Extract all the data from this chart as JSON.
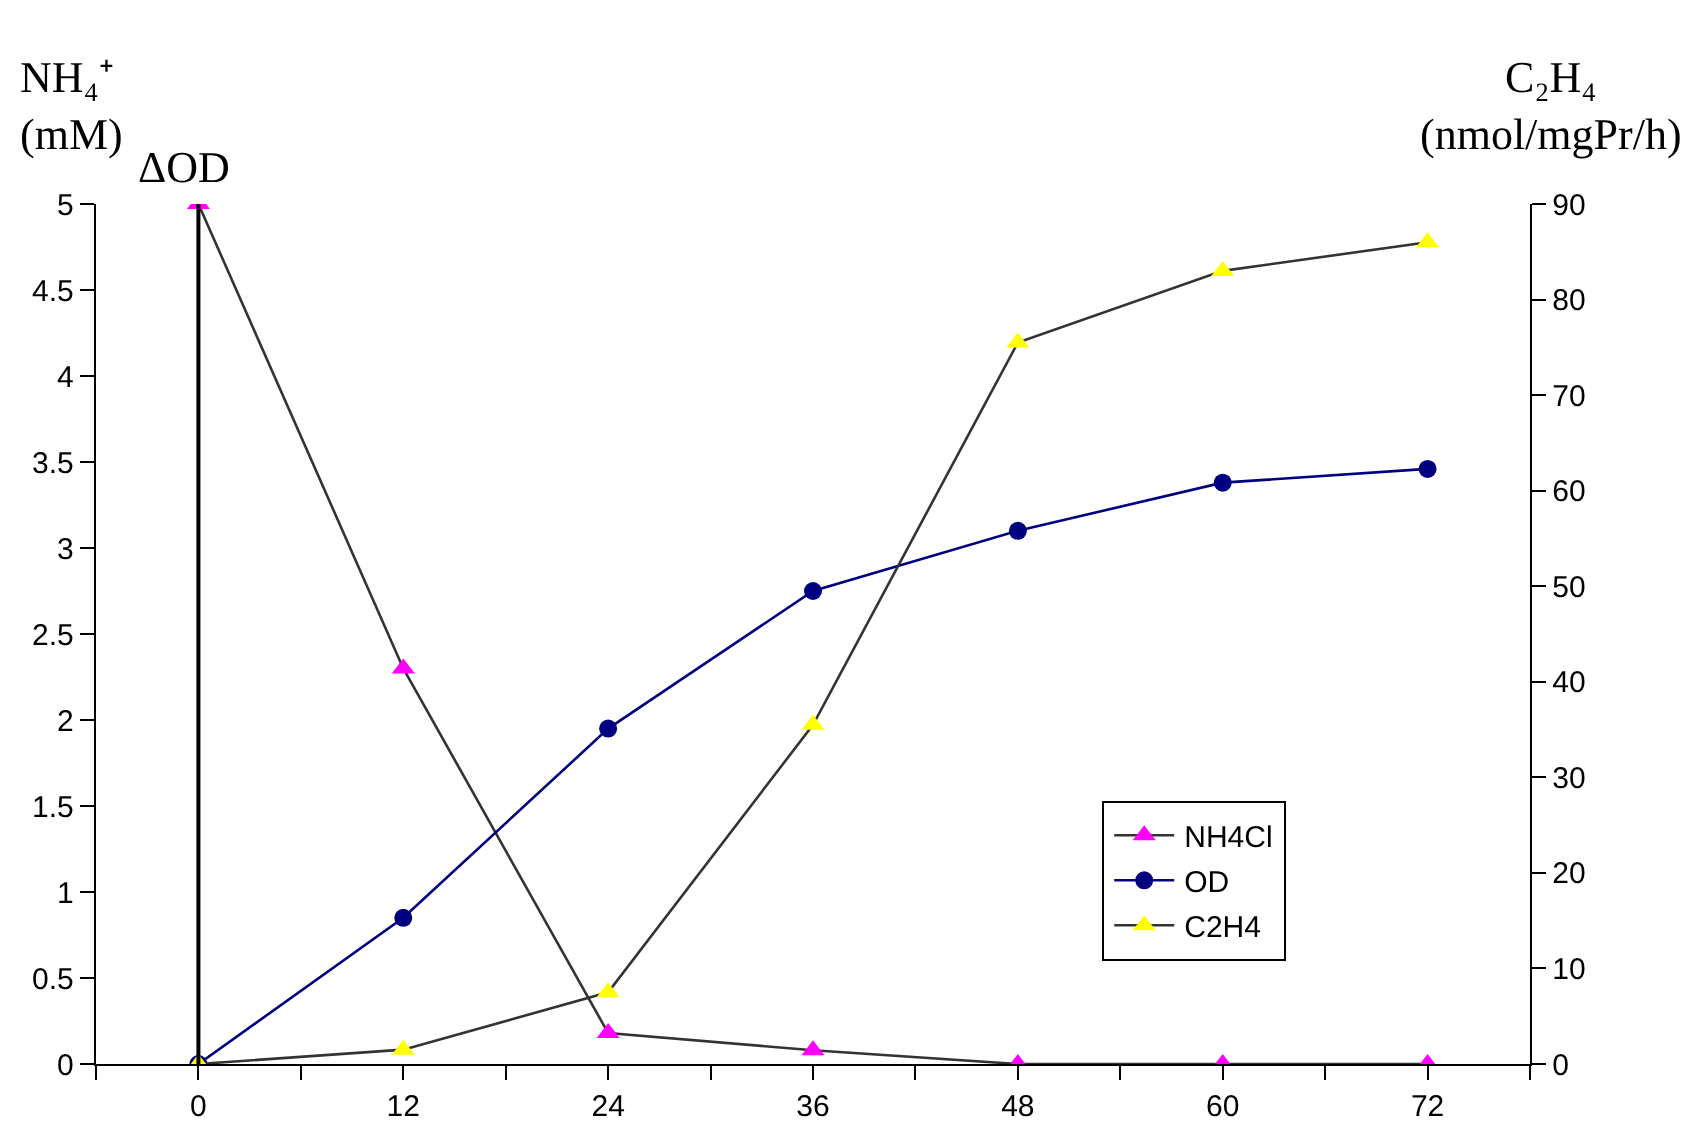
{
  "chart_data": {
    "type": "line",
    "ylabel": "NH₄⁺\n(mM)",
    "y2label": "C₂H₄\n(nmol/mgPr/h)",
    "x": [
      0,
      12,
      24,
      36,
      48,
      60,
      72
    ],
    "series": [
      {
        "name": "NH4Cl",
        "color": "#ff00ff",
        "marker": "triangle",
        "values": [
          5,
          2.3,
          0.18,
          0.08,
          0,
          0,
          0
        ]
      },
      {
        "name": "OD",
        "color": "#000080",
        "marker": "circle",
        "values": [
          0,
          0.85,
          1.95,
          2.75,
          3.1,
          3.38,
          3.46
        ]
      },
      {
        "name": "C2H4",
        "color": "#ffff00",
        "marker": "triangle",
        "axis": "y2",
        "values": [
          0,
          1.5,
          7.5,
          35.5,
          75.5,
          83,
          86
        ]
      }
    ],
    "xlim": [
      -6,
      78
    ],
    "xticks": [
      {
        "value": -6,
        "label": null
      },
      0,
      {
        "value": 6,
        "label": null
      },
      12,
      {
        "value": 18,
        "label": null
      },
      24,
      {
        "value": 30,
        "label": null
      },
      36,
      {
        "value": 42,
        "label": null
      },
      48,
      {
        "value": 54,
        "label": null
      },
      60,
      {
        "value": 66,
        "label": null
      },
      72,
      {
        "value": 78,
        "label": null
      }
    ],
    "ylim": [
      0,
      5
    ],
    "yticks": [
      0,
      0.5,
      1,
      1.5,
      2,
      2.5,
      3,
      3.5,
      4,
      4.5,
      5
    ],
    "y2lim": [
      0,
      90
    ],
    "y2ticks": [
      0,
      10,
      20,
      30,
      40,
      50,
      60,
      70,
      80,
      90
    ],
    "ref_lines": [
      {
        "axis": "x",
        "value": 0,
        "label": "ΔOD",
        "color": "#000000"
      }
    ],
    "legend": "bottom right"
  }
}
